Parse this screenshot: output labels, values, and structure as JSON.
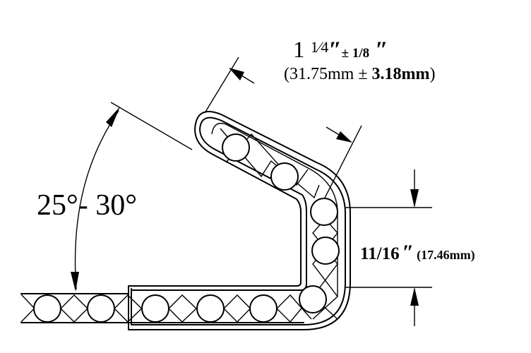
{
  "labels": {
    "angle": "25°- 30°",
    "thickness_whole": "1",
    "thickness_fraction": "1⁄4",
    "thickness_inch_mark": "″",
    "thickness_tolerance": "± 1/8",
    "thickness_tol_inch_mark": "″",
    "thickness_metric_open": "(31.75mm ± ",
    "thickness_metric_tol": "3.18mm",
    "thickness_metric_close": ")",
    "gap_inches": "11/16",
    "gap_inch_mark": "″",
    "gap_metric": "(17.46mm)"
  }
}
